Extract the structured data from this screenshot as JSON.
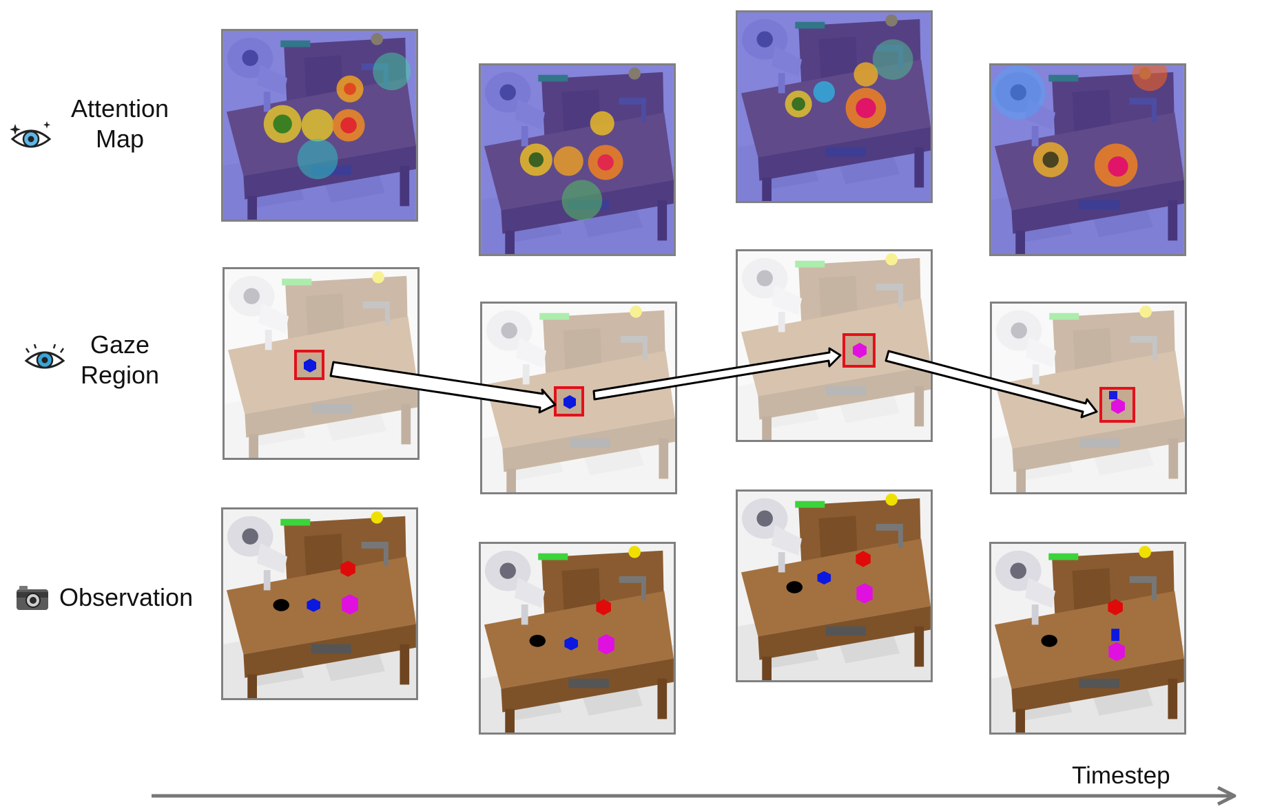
{
  "rows": [
    {
      "label_line1": "Attention",
      "label_line2": "Map",
      "icon": "sparkle-eye-icon"
    },
    {
      "label_line1": "Gaze",
      "label_line2": "Region",
      "icon": "eye-icon"
    },
    {
      "label_line1": "Observation",
      "icon": "camera-icon"
    }
  ],
  "axis": {
    "label": "Timestep"
  },
  "colors": {
    "border": "#808080",
    "gaze_box": "#e3101b",
    "axis_arrow": "#777777",
    "table_wood": "#9a6a3c"
  },
  "timesteps": 4
}
